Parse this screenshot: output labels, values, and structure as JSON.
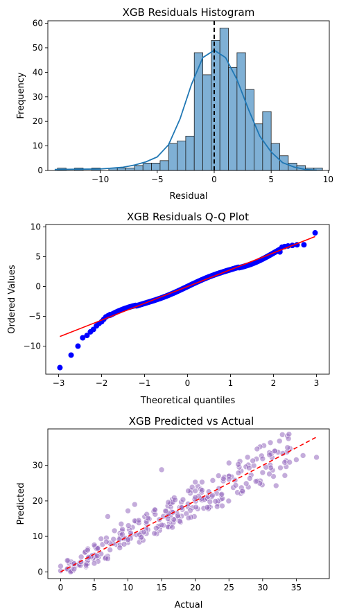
{
  "colors": {
    "hist_bar": "#7fb0d5",
    "hist_edge": "#1f1f1f",
    "kde_line": "#1f77b4",
    "zero_line": "#000000",
    "qq_points": "#0000ff",
    "qq_fit": "#ff0000",
    "scatter_points": "#9467bd",
    "identity_line": "#ff0000"
  },
  "chart_data": [
    {
      "type": "bar",
      "title": "XGB Residuals Histogram",
      "xlabel": "Residual",
      "ylabel": "Frequency",
      "xlim": [
        -14.6,
        10.1
      ],
      "ylim": [
        0,
        61
      ],
      "xticks": [
        -10,
        -5,
        0,
        5,
        10
      ],
      "yticks": [
        0,
        10,
        20,
        30,
        40,
        50,
        60
      ],
      "bin_start": -13.75,
      "bin_width": 0.75,
      "counts": [
        1,
        0,
        1,
        0,
        1,
        0,
        1,
        1,
        1,
        2,
        3,
        3,
        4,
        11,
        12,
        14,
        48,
        39,
        53,
        58,
        42,
        48,
        33,
        19,
        24,
        11,
        6,
        3,
        2,
        1,
        1
      ],
      "kde": {
        "x": [
          -14,
          -12,
          -10,
          -8,
          -7,
          -6,
          -5,
          -4,
          -3,
          -2,
          -1,
          0,
          1,
          2,
          3,
          4,
          5,
          6,
          7,
          8,
          9
        ],
        "y": [
          0.4,
          0.5,
          0.6,
          1.3,
          2.2,
          3.5,
          5.5,
          10.5,
          21,
          35,
          46,
          49,
          46,
          37,
          25,
          14,
          7.5,
          3.2,
          1.4,
          0.4,
          0.1
        ]
      },
      "vline_x": 0
    },
    {
      "type": "scatter",
      "title": "XGB Residuals Q-Q Plot",
      "xlabel": "Theoretical quantiles",
      "ylabel": "Ordered Values",
      "xlim": [
        -3.3,
        3.3
      ],
      "ylim": [
        -14.7,
        10.4
      ],
      "xticks": [
        -3,
        -2,
        -1,
        0,
        1,
        2,
        3
      ],
      "yticks": [
        -10,
        -5,
        0,
        5,
        10
      ],
      "points": {
        "x": [
          -2.97,
          -2.71,
          -2.55,
          -2.44,
          -2.34,
          -2.26,
          -2.19,
          -2.12,
          -2.06,
          -2.0,
          -1.95,
          -1.9,
          -1.85,
          -1.8,
          2.15,
          2.2,
          2.26,
          2.34,
          2.44,
          2.55,
          2.71,
          2.97
        ],
        "y": [
          -13.6,
          -11.5,
          -10.0,
          -8.6,
          -8.2,
          -7.6,
          -7.2,
          -6.6,
          -6.2,
          -5.9,
          -5.5,
          -5.1,
          -4.9,
          -4.7,
          5.8,
          6.6,
          6.7,
          6.8,
          6.9,
          7.0,
          7.0,
          9.0
        ]
      },
      "body_range": [
        -1.8,
        2.15
      ],
      "fit_line": {
        "slope": 2.82,
        "intercept": 0.0,
        "x_range": [
          -2.97,
          2.97
        ]
      }
    },
    {
      "type": "scatter",
      "title": "XGB Predicted vs Actual",
      "xlabel": "Actual",
      "ylabel": "Predicted",
      "xlim": [
        -1.9,
        39.9
      ],
      "ylim": [
        -1.9,
        40.3
      ],
      "xticks": [
        0,
        5,
        10,
        15,
        20,
        25,
        30,
        35
      ],
      "yticks": [
        0,
        10,
        20,
        30
      ],
      "points": {
        "x": [
          0,
          0,
          1,
          2,
          3,
          4,
          5,
          5,
          6,
          7,
          7,
          8,
          9,
          10,
          10,
          11,
          12,
          13,
          14,
          15,
          15,
          16,
          17,
          18,
          19,
          20,
          20,
          21,
          22,
          23,
          24,
          25,
          25,
          26,
          27,
          28,
          29,
          30,
          30,
          31,
          32,
          33,
          34,
          35,
          36,
          38
        ],
        "y": [
          0.3,
          1.6,
          3.2,
          0.8,
          2.8,
          6.1,
          7.6,
          2.4,
          9.3,
          15.6,
          3.7,
          11.6,
          13.5,
          17.2,
          9.1,
          19.0,
          9.8,
          15.1,
          17.5,
          28.8,
          13.2,
          19.6,
          20.3,
          18.1,
          15.2,
          25.3,
          21.0,
          23.0,
          22.6,
          19.9,
          18.6,
          26.1,
          30.7,
          24.4,
          22.8,
          29.3,
          25.5,
          28.0,
          31.9,
          27.6,
          24.3,
          33.4,
          30.9,
          31.6,
          32.8,
          32.3
        ]
      },
      "identity_line": {
        "from": 0,
        "to": 38
      }
    }
  ]
}
